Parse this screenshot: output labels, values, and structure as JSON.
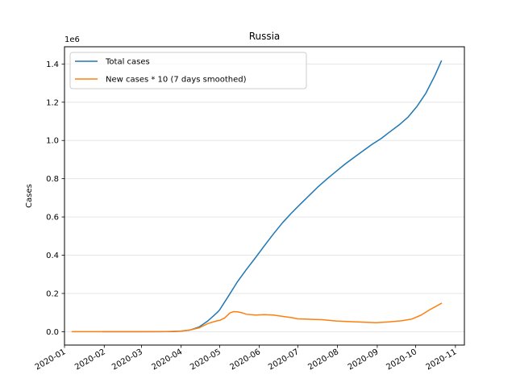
{
  "chart_data": {
    "type": "line",
    "title": "Russia",
    "xlabel": "",
    "ylabel": "Cases",
    "y_offset_label": "1e6",
    "y_scale_factor": 1000000,
    "xlim": [
      "2020-01-01",
      "2020-11-08"
    ],
    "ylim": [
      -70000,
      1490000
    ],
    "x_ticks": [
      "2020-01",
      "2020-02",
      "2020-03",
      "2020-04",
      "2020-05",
      "2020-06",
      "2020-07",
      "2020-08",
      "2020-09",
      "2020-10",
      "2020-11"
    ],
    "y_ticks": [
      0.0,
      0.2,
      0.4,
      0.6,
      0.8,
      1.0,
      1.2,
      1.4
    ],
    "grid": "horizontal",
    "legend_position": "top-left",
    "series": [
      {
        "name": "Total cases",
        "color": "#1f77b4",
        "points": [
          [
            "2020-01-31",
            2
          ],
          [
            "2020-03-01",
            3
          ],
          [
            "2020-03-15",
            60
          ],
          [
            "2020-03-25",
            660
          ],
          [
            "2020-04-01",
            2800
          ],
          [
            "2020-04-08",
            8700
          ],
          [
            "2020-04-15",
            24500
          ],
          [
            "2020-04-22",
            57000
          ],
          [
            "2020-04-29",
            99400
          ],
          [
            "2020-05-01",
            114000
          ],
          [
            "2020-05-08",
            187000
          ],
          [
            "2020-05-15",
            262000
          ],
          [
            "2020-05-22",
            326000
          ],
          [
            "2020-05-29",
            387000
          ],
          [
            "2020-06-05",
            450000
          ],
          [
            "2020-06-12",
            511000
          ],
          [
            "2020-06-19",
            569000
          ],
          [
            "2020-06-26",
            620000
          ],
          [
            "2020-07-03",
            667000
          ],
          [
            "2020-07-10",
            713000
          ],
          [
            "2020-07-17",
            759000
          ],
          [
            "2020-07-24",
            800000
          ],
          [
            "2020-07-31",
            839000
          ],
          [
            "2020-08-07",
            877000
          ],
          [
            "2020-08-14",
            912000
          ],
          [
            "2020-08-21",
            946000
          ],
          [
            "2020-08-28",
            980000
          ],
          [
            "2020-09-04",
            1010000
          ],
          [
            "2020-09-11",
            1046000
          ],
          [
            "2020-09-18",
            1081000
          ],
          [
            "2020-09-25",
            1122000
          ],
          [
            "2020-10-02",
            1178000
          ],
          [
            "2020-10-09",
            1248000
          ],
          [
            "2020-10-16",
            1340000
          ],
          [
            "2020-10-21",
            1415000
          ]
        ]
      },
      {
        "name": "New cases * 10 (7 days smoothed)",
        "color": "#ff7f0e",
        "points": [
          [
            "2020-01-07",
            0
          ],
          [
            "2020-03-01",
            0
          ],
          [
            "2020-03-20",
            800
          ],
          [
            "2020-04-01",
            3500
          ],
          [
            "2020-04-08",
            9000
          ],
          [
            "2020-04-15",
            20000
          ],
          [
            "2020-04-22",
            43000
          ],
          [
            "2020-04-29",
            57000
          ],
          [
            "2020-05-01",
            59000
          ],
          [
            "2020-05-05",
            72000
          ],
          [
            "2020-05-09",
            98000
          ],
          [
            "2020-05-12",
            105000
          ],
          [
            "2020-05-15",
            104000
          ],
          [
            "2020-05-19",
            98000
          ],
          [
            "2020-05-22",
            91000
          ],
          [
            "2020-05-29",
            87000
          ],
          [
            "2020-06-05",
            89000
          ],
          [
            "2020-06-12",
            87000
          ],
          [
            "2020-06-19",
            80000
          ],
          [
            "2020-06-26",
            74000
          ],
          [
            "2020-07-01",
            67000
          ],
          [
            "2020-07-10",
            65000
          ],
          [
            "2020-07-20",
            63000
          ],
          [
            "2020-07-31",
            56000
          ],
          [
            "2020-08-10",
            53000
          ],
          [
            "2020-08-20",
            50000
          ],
          [
            "2020-08-31",
            47000
          ],
          [
            "2020-09-10",
            51000
          ],
          [
            "2020-09-20",
            57000
          ],
          [
            "2020-09-28",
            66000
          ],
          [
            "2020-10-05",
            86000
          ],
          [
            "2020-10-12",
            115000
          ],
          [
            "2020-10-21",
            148000
          ]
        ]
      }
    ]
  }
}
